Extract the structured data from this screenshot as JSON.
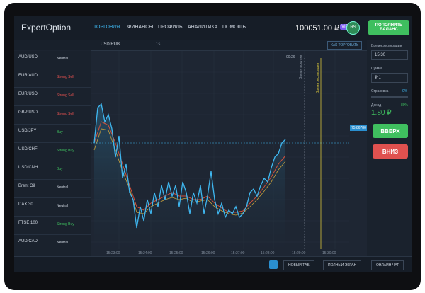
{
  "header": {
    "logo": "ExpertOption",
    "nav": [
      "ТОРГОВЛЯ",
      "ФИНАНСЫ",
      "ПРОФИЛЬ",
      "АНАЛИТИКА",
      "ПОМОЩЬ"
    ],
    "balance": "100051.00 ₽",
    "badge": "VIP",
    "avatar": "RS",
    "deposit": "ПОПОЛНИТЬ БАЛАНС"
  },
  "assets": [
    {
      "name": "AUD/USD",
      "signal": "Neutral",
      "color": "#cfd6e0"
    },
    {
      "name": "EUR/AUD",
      "signal": "Strong Sell",
      "color": "#e0514f"
    },
    {
      "name": "EUR/USD",
      "signal": "Strong Sell",
      "color": "#e0514f"
    },
    {
      "name": "GBP/USD",
      "signal": "Strong Sell",
      "color": "#e0514f"
    },
    {
      "name": "USD/JPY",
      "signal": "Buy",
      "color": "#3fbf5f"
    },
    {
      "name": "USD/CHF",
      "signal": "Strong Buy",
      "color": "#3fbf5f"
    },
    {
      "name": "USD/CNH",
      "signal": "Buy",
      "color": "#3fbf5f"
    },
    {
      "name": "Brent Oil",
      "signal": "Neutral",
      "color": "#cfd6e0"
    },
    {
      "name": "DAX 30",
      "signal": "Neutral",
      "color": "#cfd6e0"
    },
    {
      "name": "FTSE 100",
      "signal": "Strong Buy",
      "color": "#3fbf5f"
    },
    {
      "name": "AUD/CAD",
      "signal": "Neutral",
      "color": "#cfd6e0"
    }
  ],
  "toolbar": {
    "symbol": "USD/RUB",
    "timeframe": "1s",
    "how_to": "КАК ТОРГОВАТЬ"
  },
  "chart": {
    "timer": "00:26",
    "purchase_label": "Время покупки",
    "expiry_label": "Время экспирации",
    "current_price": "75.86780",
    "times": [
      "15:23:00",
      "15:24:00",
      "15:25:00",
      "15:26:00",
      "15:27:00",
      "15:28:00",
      "15:29:00",
      "15:30:00"
    ]
  },
  "panel": {
    "expiry_label": "Время экспирации",
    "expiry": "15:30",
    "amount_label": "Сумма",
    "amount": "₽ 1",
    "insurance_label": "Страховка",
    "insurance": "0%",
    "income_label": "Доход",
    "income_pct": "80%",
    "income": "1.80 ₽",
    "up": "ВВЕРХ",
    "down": "ВНИЗ"
  },
  "footer": {
    "new_tab": "НОВЫЙ ТАБ",
    "fullscreen": "ПОЛНЫЙ ЭКРАН",
    "chat": "ОНЛАЙН-ЧАТ"
  }
}
